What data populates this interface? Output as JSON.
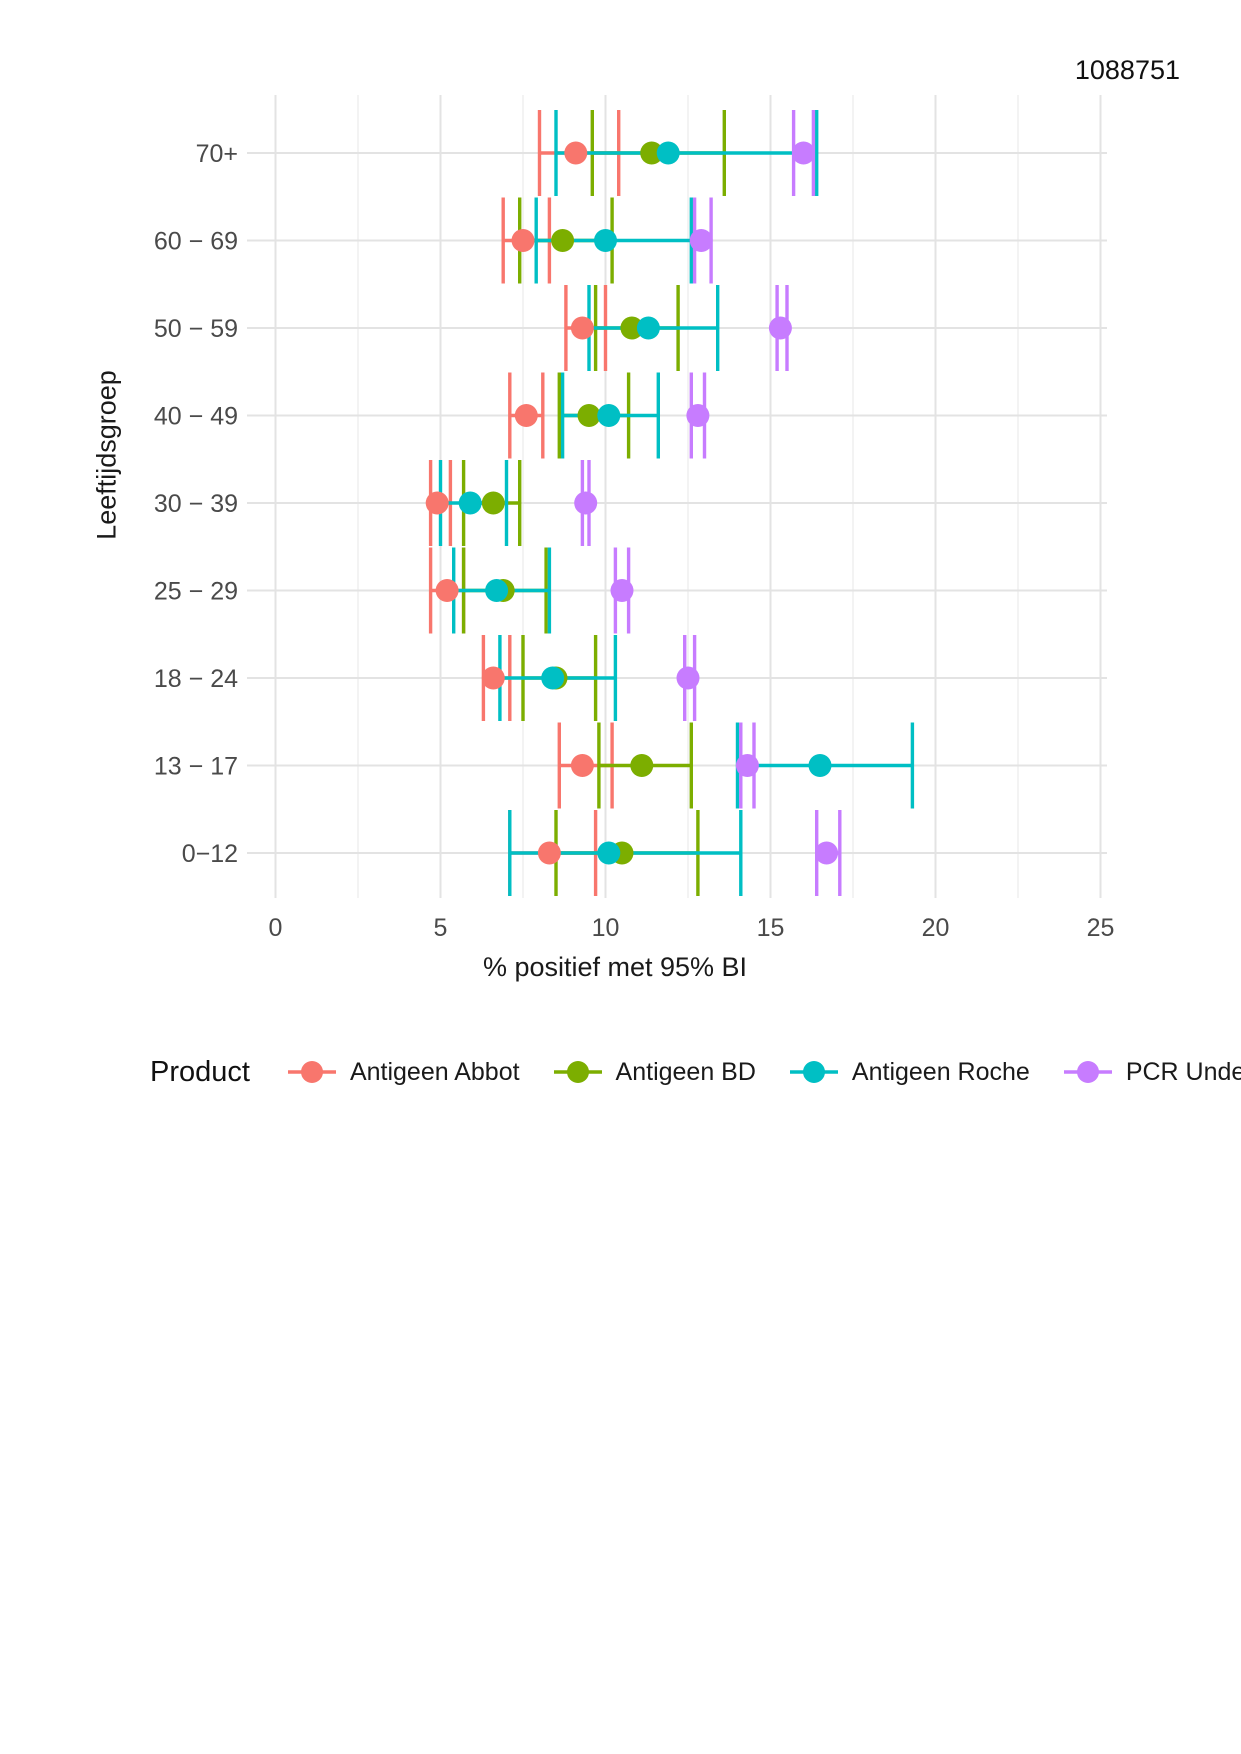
{
  "page": {
    "number": "1088751"
  },
  "chart_data": {
    "type": "scatter",
    "subtype": "dot-with-error-bars",
    "orientation": "horizontal",
    "title": "",
    "xlabel": "% positief met 95% BI",
    "ylabel": "Leeftijdsgroep",
    "xlim": [
      0,
      25
    ],
    "xticks": [
      0,
      5,
      10,
      15,
      20,
      25
    ],
    "grid": true,
    "legend_title": "Product",
    "legend_position": "bottom",
    "categories": [
      "70+",
      "60 − 69",
      "50 − 59",
      "40 − 49",
      "30 − 39",
      "25 − 29",
      "18 − 24",
      "13 − 17",
      "0−12"
    ],
    "series": [
      {
        "name": "Antigeen Abbot",
        "color": "#F8766D",
        "values": [
          9.1,
          7.5,
          9.3,
          7.6,
          4.9,
          5.2,
          6.6,
          9.3,
          8.3
        ],
        "ci_low": [
          8.0,
          6.9,
          8.8,
          7.1,
          4.7,
          4.7,
          6.3,
          8.6,
          7.1
        ],
        "ci_high": [
          10.4,
          8.3,
          10.0,
          8.1,
          5.3,
          5.7,
          7.1,
          10.2,
          9.7
        ]
      },
      {
        "name": "Antigeen BD",
        "color": "#7CAE00",
        "values": [
          11.4,
          8.7,
          10.8,
          9.5,
          6.6,
          6.9,
          8.5,
          11.1,
          10.5
        ],
        "ci_low": [
          9.6,
          7.4,
          9.7,
          8.6,
          5.7,
          5.7,
          7.5,
          9.8,
          8.5
        ],
        "ci_high": [
          13.6,
          10.2,
          12.2,
          10.7,
          7.4,
          8.2,
          9.7,
          12.6,
          12.8
        ]
      },
      {
        "name": "Antigeen Roche",
        "color": "#00BFC4",
        "values": [
          11.9,
          10.0,
          11.3,
          10.1,
          5.9,
          6.7,
          8.4,
          16.5,
          10.1
        ],
        "ci_low": [
          8.5,
          7.9,
          9.5,
          8.7,
          5.0,
          5.4,
          6.8,
          14.0,
          7.1
        ],
        "ci_high": [
          16.4,
          12.6,
          13.4,
          11.6,
          7.0,
          8.3,
          10.3,
          19.3,
          14.1
        ]
      },
      {
        "name": "PCR Unde",
        "color": "#C77CFF",
        "values": [
          16.0,
          12.9,
          15.3,
          12.8,
          9.4,
          10.5,
          12.5,
          14.3,
          16.7
        ],
        "ci_low": [
          15.7,
          12.7,
          15.2,
          12.6,
          9.3,
          10.3,
          12.4,
          14.1,
          16.4
        ],
        "ci_high": [
          16.3,
          13.2,
          15.5,
          13.0,
          9.5,
          10.7,
          12.7,
          14.5,
          17.1
        ]
      }
    ]
  }
}
